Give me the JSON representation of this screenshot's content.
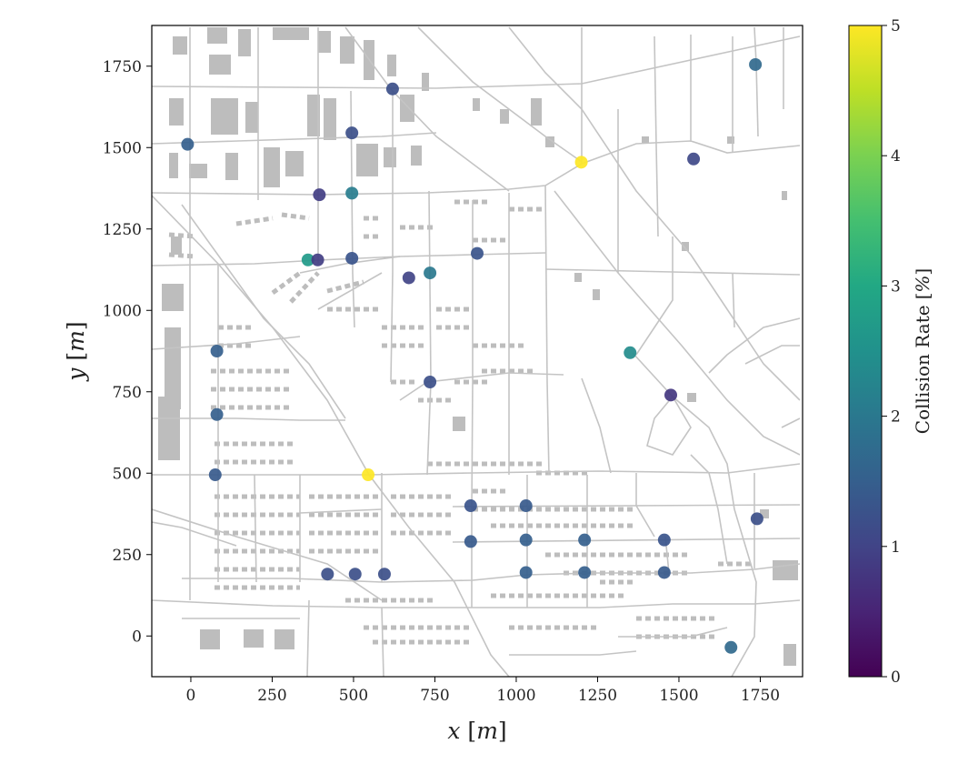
{
  "chart_data": {
    "type": "scatter",
    "title": "",
    "xlabel": "x",
    "ylabel": "y",
    "unit": "m",
    "xlim": [
      -120,
      1880
    ],
    "ylim": [
      -125,
      1875
    ],
    "xticks": [
      0,
      250,
      500,
      750,
      1000,
      1250,
      1500,
      1750
    ],
    "yticks": [
      0,
      250,
      500,
      750,
      1000,
      1250,
      1500,
      1750
    ],
    "colorbar": {
      "label": "Collision Rate",
      "unit": "%",
      "colormap": "viridis",
      "range": [
        0,
        5
      ],
      "ticks": [
        0,
        1,
        2,
        3,
        4,
        5
      ]
    },
    "background": "street map with roads and buildings",
    "points": [
      {
        "x": -10,
        "y": 1510,
        "value": 1.5
      },
      {
        "x": 620,
        "y": 1680,
        "value": 1.2
      },
      {
        "x": 1735,
        "y": 1755,
        "value": 1.7
      },
      {
        "x": 495,
        "y": 1545,
        "value": 1.2
      },
      {
        "x": 1545,
        "y": 1465,
        "value": 1.1
      },
      {
        "x": 1200,
        "y": 1455,
        "value": 5.0
      },
      {
        "x": 395,
        "y": 1355,
        "value": 0.9
      },
      {
        "x": 495,
        "y": 1360,
        "value": 2.1
      },
      {
        "x": 880,
        "y": 1175,
        "value": 1.3
      },
      {
        "x": 360,
        "y": 1155,
        "value": 2.7
      },
      {
        "x": 390,
        "y": 1155,
        "value": 0.9
      },
      {
        "x": 495,
        "y": 1160,
        "value": 1.3
      },
      {
        "x": 670,
        "y": 1100,
        "value": 1.0
      },
      {
        "x": 735,
        "y": 1115,
        "value": 2.0
      },
      {
        "x": 80,
        "y": 875,
        "value": 1.5
      },
      {
        "x": 1350,
        "y": 870,
        "value": 2.4
      },
      {
        "x": 735,
        "y": 780,
        "value": 1.2
      },
      {
        "x": 1475,
        "y": 740,
        "value": 0.8
      },
      {
        "x": 80,
        "y": 680,
        "value": 1.5
      },
      {
        "x": 75,
        "y": 495,
        "value": 1.4
      },
      {
        "x": 545,
        "y": 495,
        "value": 5.0
      },
      {
        "x": 860,
        "y": 400,
        "value": 1.3
      },
      {
        "x": 1030,
        "y": 400,
        "value": 1.4
      },
      {
        "x": 1740,
        "y": 360,
        "value": 1.2
      },
      {
        "x": 860,
        "y": 290,
        "value": 1.4
      },
      {
        "x": 1030,
        "y": 295,
        "value": 1.5
      },
      {
        "x": 1210,
        "y": 295,
        "value": 1.5
      },
      {
        "x": 1455,
        "y": 295,
        "value": 1.3
      },
      {
        "x": 420,
        "y": 190,
        "value": 1.2
      },
      {
        "x": 505,
        "y": 190,
        "value": 1.2
      },
      {
        "x": 595,
        "y": 190,
        "value": 1.2
      },
      {
        "x": 1030,
        "y": 195,
        "value": 1.5
      },
      {
        "x": 1210,
        "y": 195,
        "value": 1.5
      },
      {
        "x": 1455,
        "y": 195,
        "value": 1.4
      },
      {
        "x": 1660,
        "y": -35,
        "value": 1.7
      }
    ]
  }
}
